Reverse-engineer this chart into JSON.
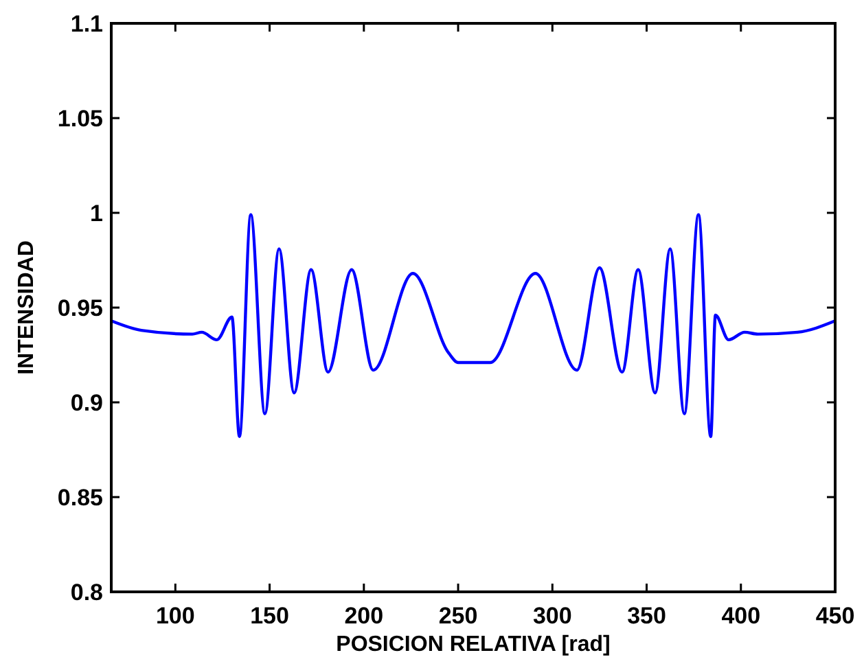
{
  "chart_data": {
    "type": "line",
    "xlabel": "POSICION RELATIVA [rad]",
    "ylabel": "INTENSIDAD",
    "xlim": [
      66,
      450
    ],
    "ylim": [
      0.8,
      1.1
    ],
    "xticks": [
      100,
      150,
      200,
      250,
      300,
      350,
      400,
      450
    ],
    "yticks": [
      0.8,
      0.85,
      0.9,
      0.95,
      1,
      1.05,
      1.1
    ],
    "grid": false,
    "line_style": "solid",
    "marker": "none",
    "series": [
      {
        "color": "#0000ff",
        "x": [
          66,
          82,
          109,
          114,
          122,
          130,
          134,
          140,
          147.5,
          155,
          163,
          172,
          181,
          193.5,
          205,
          226,
          245,
          250,
          267,
          291,
          313,
          325,
          337,
          345.5,
          354.5,
          362.5,
          370,
          377.5,
          384,
          386.5,
          393.5,
          402,
          409,
          430,
          450
        ],
        "values": [
          0.943,
          0.938,
          0.936,
          0.937,
          0.933,
          0.945,
          0.882,
          0.999,
          0.894,
          0.981,
          0.905,
          0.97,
          0.916,
          0.97,
          0.917,
          0.968,
          0.926,
          0.921,
          0.921,
          0.968,
          0.917,
          0.971,
          0.916,
          0.97,
          0.905,
          0.981,
          0.894,
          0.999,
          0.882,
          0.946,
          0.933,
          0.937,
          0.936,
          0.937,
          0.943
        ]
      }
    ]
  }
}
